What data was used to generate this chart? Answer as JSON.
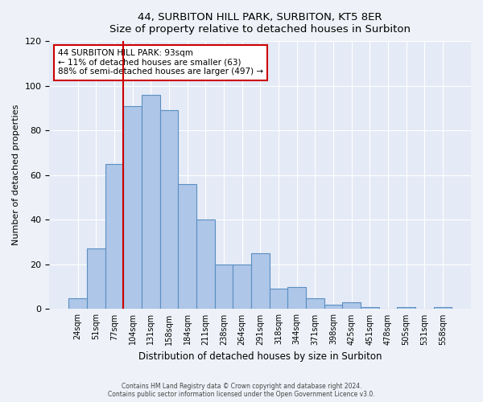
{
  "title": "44, SURBITON HILL PARK, SURBITON, KT5 8ER",
  "subtitle": "Size of property relative to detached houses in Surbiton",
  "xlabel": "Distribution of detached houses by size in Surbiton",
  "ylabel": "Number of detached properties",
  "bar_labels": [
    "24sqm",
    "51sqm",
    "77sqm",
    "104sqm",
    "131sqm",
    "158sqm",
    "184sqm",
    "211sqm",
    "238sqm",
    "264sqm",
    "291sqm",
    "318sqm",
    "344sqm",
    "371sqm",
    "398sqm",
    "425sqm",
    "451sqm",
    "478sqm",
    "505sqm",
    "531sqm",
    "558sqm"
  ],
  "bar_values": [
    5,
    27,
    65,
    91,
    96,
    89,
    56,
    40,
    20,
    20,
    25,
    9,
    10,
    5,
    2,
    3,
    1,
    0,
    1,
    0,
    1
  ],
  "bar_color": "#aec6e8",
  "bar_edgecolor": "#5a8fc2",
  "ylim": [
    0,
    120
  ],
  "yticks": [
    0,
    20,
    40,
    60,
    80,
    100,
    120
  ],
  "vline_x_index": 3,
  "vline_color": "#cc0000",
  "annotation_title": "44 SURBITON HILL PARK: 93sqm",
  "annotation_line1": "← 11% of detached houses are smaller (63)",
  "annotation_line2": "88% of semi-detached houses are larger (497) →",
  "annotation_box_color": "#ffffff",
  "annotation_box_edgecolor": "#cc0000",
  "footer_line1": "Contains HM Land Registry data © Crown copyright and database right 2024.",
  "footer_line2": "Contains public sector information licensed under the Open Government Licence v3.0.",
  "bg_color": "#eef2f8",
  "plot_bg_color": "#e4eaf6"
}
